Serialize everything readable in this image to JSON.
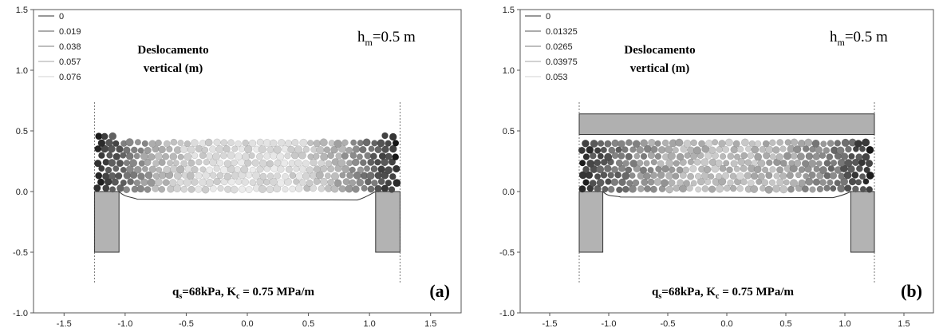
{
  "chart_data": [
    {
      "type": "scatter",
      "panel_label": "(a)",
      "title": "Deslocamento vertical (m)",
      "title_lines": [
        "Deslocamento",
        "vertical (m)"
      ],
      "height_label": "h",
      "height_sub": "m",
      "height_value": "=0.5 m",
      "height_text": "hm=0.5 m",
      "load_q": "q",
      "load_q_sub": "s",
      "load_rest": "=68kPa, K",
      "load_k_sub": "c",
      "load_tail": " = 0.75 MPa/m",
      "load_text": "qs=68kPa, Kc = 0.75 MPa/m",
      "has_beam": false,
      "xlim": [
        -1.75,
        1.75
      ],
      "ylim": [
        -1.0,
        1.5
      ],
      "x_ticks": [
        "-1.5",
        "-1.0",
        "-0.5",
        "0.0",
        "0.5",
        "1.0",
        "1.5"
      ],
      "y_ticks": [
        "-1.0",
        "-0.5",
        "0.0",
        "0.5",
        "1.0",
        "1.5"
      ],
      "legend": [
        {
          "label": "0",
          "color": "#777777"
        },
        {
          "label": "0.019",
          "color": "#8f8f8f"
        },
        {
          "label": "0.038",
          "color": "#a8a8a8"
        },
        {
          "label": "0.057",
          "color": "#c4c4c4"
        },
        {
          "label": "0.076",
          "color": "#e2e2e2"
        }
      ],
      "displacement_range": [
        0,
        0.076
      ],
      "soil_region": {
        "x": [
          -1.25,
          1.25
        ],
        "y": [
          0.0,
          0.48
        ]
      },
      "supports": [
        {
          "x": [
            -1.25,
            -1.05
          ],
          "y": [
            -0.5,
            0.0
          ]
        },
        {
          "x": [
            1.05,
            1.25
          ],
          "y": [
            -0.5,
            0.0
          ]
        }
      ],
      "boundary_lines_x": [
        -1.25,
        1.25
      ],
      "boundary_lines_y": [
        -0.75,
        0.75
      ],
      "deformed_base_y": -0.07
    },
    {
      "type": "scatter",
      "panel_label": "(b)",
      "title": "Deslocamento vertical (m)",
      "title_lines": [
        "Deslocamento",
        "vertical (m)"
      ],
      "height_label": "h",
      "height_sub": "m",
      "height_value": "=0.5 m",
      "height_text": "hm=0.5 m",
      "load_q": "q",
      "load_q_sub": "s",
      "load_rest": "=68kPa, K",
      "load_k_sub": "c",
      "load_tail": " = 0.75 MPa/m",
      "load_text": "qs=68kPa, Kc = 0.75 MPa/m",
      "has_beam": true,
      "xlim": [
        -1.75,
        1.75
      ],
      "ylim": [
        -1.0,
        1.5
      ],
      "x_ticks": [
        "-1.5",
        "-1.0",
        "-0.5",
        "0.0",
        "0.5",
        "1.0",
        "1.5"
      ],
      "y_ticks": [
        "-1.0",
        "-0.5",
        "0.0",
        "0.5",
        "1.0",
        "1.5"
      ],
      "legend": [
        {
          "label": "0",
          "color": "#777777"
        },
        {
          "label": "0.01325",
          "color": "#8f8f8f"
        },
        {
          "label": "0.0265",
          "color": "#a8a8a8"
        },
        {
          "label": "0.03975",
          "color": "#c4c4c4"
        },
        {
          "label": "0.053",
          "color": "#e2e2e2"
        }
      ],
      "displacement_range": [
        0,
        0.053
      ],
      "soil_region": {
        "x": [
          -1.25,
          1.25
        ],
        "y": [
          0.0,
          0.46
        ]
      },
      "beam": {
        "x": [
          -1.25,
          1.25
        ],
        "y": [
          0.47,
          0.64
        ],
        "color": "#b0b0b0"
      },
      "supports": [
        {
          "x": [
            -1.25,
            -1.05
          ],
          "y": [
            -0.5,
            0.0
          ]
        },
        {
          "x": [
            1.05,
            1.25
          ],
          "y": [
            -0.5,
            0.0
          ]
        }
      ],
      "boundary_lines_x": [
        -1.25,
        1.25
      ],
      "boundary_lines_y": [
        -0.75,
        0.75
      ],
      "deformed_base_y": -0.05
    }
  ],
  "colors": {
    "support_fill": "#b3b3b3",
    "axis": "#555555",
    "dark_particle": "#1a1a1a",
    "light_particle": "#e6e6e6"
  }
}
